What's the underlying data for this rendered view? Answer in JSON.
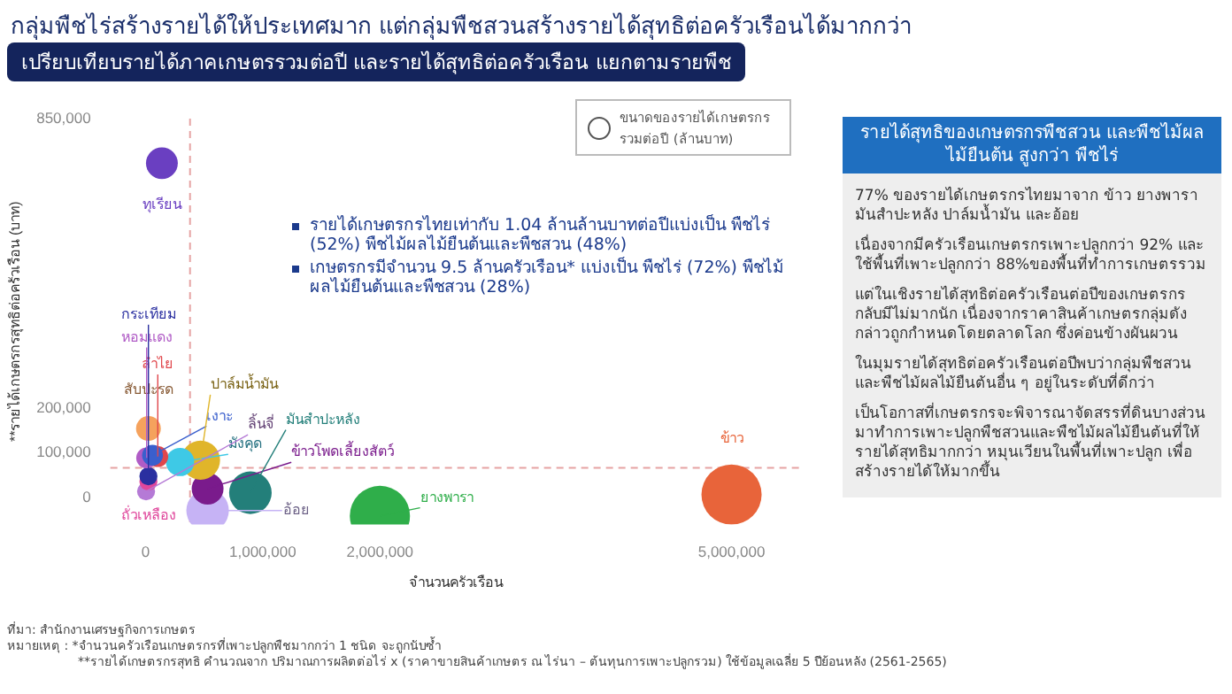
{
  "chart_data": [
    {
      "type": "bubble",
      "title": "กลุ่มพืชไร่สร้างรายได้ให้ประเทศมาก แต่กลุ่มพืชสวนสร้างรายได้สุทธิต่อครัวเรือนได้มากกว่า",
      "subtitle": "เปรียบเทียบรายได้ภาคเกษตรรวมต่อปี และรายได้สุทธิต่อครัวเรือน แยกตามรายพืช",
      "xlabel": "จำนวนครัวเรือน",
      "ylabel": "**รายได้เกษตรกรสุทธิต่อครัวเรือน (บาท)",
      "legend_title": "ขนาดของรายได้เกษตรกรรวมต่อปี (ล้านบาท)",
      "xlim": [
        -300000,
        5600000
      ],
      "xticks": [
        0,
        {
          "value": 1000000,
          "label": "1,000,000"
        },
        {
          "value": 2000000,
          "label": "2,000,000"
        },
        {
          "value": 5000000,
          "label": "5,000,000"
        }
      ],
      "ylim": [
        -60000,
        850000
      ],
      "yticks": [
        0,
        {
          "value": 100000,
          "label": "100,000"
        },
        {
          "value": 200000,
          "label": "200,000"
        },
        {
          "value": 850000,
          "label": "850,000"
        }
      ],
      "series": [
        {
          "name": "ทุเรียน",
          "color": "#6a3fc1",
          "x": [
            140000
          ],
          "values": [
            750000
          ],
          "sizes": [
            0.28
          ]
        },
        {
          "name": "สับปะรด",
          "color": "#f5a25d",
          "x": [
            25000
          ],
          "values": [
            155000
          ],
          "sizes": [
            0.17
          ]
        },
        {
          "name": "เงาะ",
          "color": "#3a5fcd",
          "x": [
            60000
          ],
          "values": [
            95000
          ],
          "sizes": [
            0.12
          ]
        },
        {
          "name": "ลำไย",
          "color": "#e0474c",
          "x": [
            105000
          ],
          "values": [
            92000
          ],
          "sizes": [
            0.12
          ]
        },
        {
          "name": "หอมแดง",
          "color": "#b05cc6",
          "x": [
            10000
          ],
          "values": [
            89000
          ],
          "sizes": [
            0.12
          ]
        },
        {
          "name": "มังคุด",
          "color": "#3ec9e6",
          "x": [
            295000
          ],
          "values": [
            80000
          ],
          "sizes": [
            0.22
          ]
        },
        {
          "name": "ปาล์มน้ำมัน",
          "color": "#e0b52a",
          "x": [
            470000
          ],
          "values": [
            84000
          ],
          "sizes": [
            0.42
          ]
        },
        {
          "name": "กระเทียม",
          "color": "#2a2fa0",
          "x": [
            25000
          ],
          "values": [
            48000
          ],
          "sizes": [
            0.09
          ]
        },
        {
          "name": "ถั่วเหลือง",
          "color": "#e0479c",
          "x": [
            25000
          ],
          "values": [
            36000
          ],
          "sizes": [
            0.09
          ]
        },
        {
          "name": "ลิ้นจี่",
          "color": "#b57ad6",
          "x": [
            5000
          ],
          "values": [
            14000
          ],
          "sizes": [
            0.09
          ]
        },
        {
          "name": "ข้าวโพดเลี้ยงสัตว์",
          "color": "#7a1b8c",
          "x": [
            530000
          ],
          "values": [
            20000
          ],
          "sizes": [
            0.28
          ]
        },
        {
          "name": "มันสำปะหลัง",
          "color": "#237f7a",
          "x": [
            895000
          ],
          "values": [
            11000
          ],
          "sizes": [
            0.5
          ]
        },
        {
          "name": "อ้อย",
          "color": "#c6b3f5",
          "x": [
            530000
          ],
          "values": [
            -29000
          ],
          "sizes": [
            0.5
          ]
        },
        {
          "name": "ยางพารา",
          "color": "#2fae4a",
          "x": [
            2000000
          ],
          "values": [
            -41000
          ],
          "sizes": [
            1
          ]
        },
        {
          "name": "ข้าว",
          "color": "#e8643a",
          "x": [
            5000000
          ],
          "values": [
            7000
          ],
          "sizes": [
            1
          ]
        }
      ],
      "ref_lines": [
        {
          "axis": "x",
          "value": 380000,
          "color": "#e6a3a3",
          "line_style": "dashed"
        },
        {
          "axis": "y",
          "value": 67000,
          "color": "#e6a3a3",
          "line_style": "dashed"
        }
      ],
      "annotations": [
        "รายได้เกษตรกรไทยเท่ากับ 1.04 ล้านล้านบาทต่อปีแบ่งเป็น พืชไร่ (52%) พืชไม้ผลไม้ยืนต้นและพืชสวน (48%)",
        "เกษตรกรมีจำนวน 9.5 ล้านครัวเรือน* แบ่งเป็น พืชไร่ (72%) พืชไม้ผลไม้ยืนต้นและพืชสวน (28%)",
        "ที่มา: สำนักงานเศรษฐกิจการเกษตร",
        "หมายเหตุ : *จำนวนครัวเรือนเกษตรกรที่เพาะปลูกพืชมากกว่า 1 ชนิด จะถูกนับซ้ำ",
        "**รายได้เกษตรกรสุทธิ คำนวณจาก ปริมาณการผลิตต่อไร่ x (ราคาขายสินค้าเกษตร ณ ไร่นา – ต้นทุนการเพาะปลูกรวม) ใช้ข้อมูลเฉลี่ย 5 ปีย้อนหลัง (2561-2565)"
      ]
    },
    {
      "type": "other",
      "title": "รายได้สุทธิของเกษตรกรพืชสวน และพืชไม้ผลไม้ยืนต้น สูงกว่า พืชไร่",
      "annotations": [
        "77% ของรายได้เกษตรกรไทยมาจาก ข้าว ยางพารา มันสำปะหลัง ปาล์มน้ำมัน และอ้อย",
        "เนื่องจากมีครัวเรือนเกษตรกรเพาะปลูกกว่า 92% และใช้พื้นที่เพาะปลูกกว่า 88%ของพื้นที่ทำการเกษตรรวม",
        "แต่ในเชิงรายได้สุทธิต่อครัวเรือนต่อปีของเกษตรกรกลับมีไม่มากนัก เนื่องจากราคาสินค้าเกษตรกลุ่มดังกล่าวถูกกำหนดโดยตลาดโลก ซึ่งค่อนข้างผันผวน",
        "ในมุมรายได้สุทธิต่อครัวเรือนต่อปีพบว่ากลุ่มพืชสวน และพืชไม้ผลไม้ยืนต้นอื่น ๆ อยู่ในระดับที่ดีกว่า",
        "เป็นโอกาสที่เกษตรกรจะพิจารณาจัดสรรที่ดินบางส่วนมาทำการเพาะปลูกพืชสวนและพืชไม้ผลไม้ยืนต้นที่ให้รายได้สุทธิมากกว่า หมุนเวียนในพื้นที่เพาะปลูก เพื่อสร้างรายได้ให้มากขึ้น"
      ]
    }
  ]
}
